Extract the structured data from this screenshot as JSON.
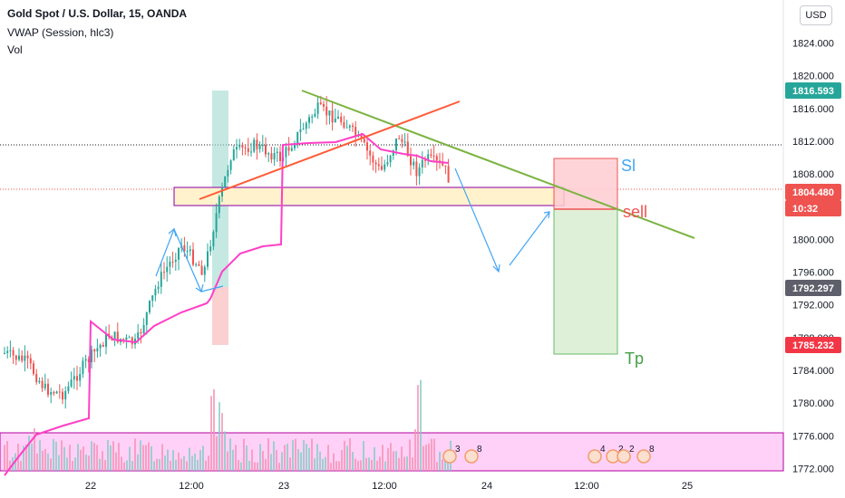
{
  "header": {
    "title": "Gold Spot / U.S. Dollar, 15, OANDA",
    "vwap": "VWAP (Session, hlc3)",
    "vol": "Vol",
    "currency": "USD"
  },
  "chart_data": {
    "type": "candlestick",
    "y_axis": {
      "range": [
        1770.5,
        1825.5
      ],
      "ticks": [
        "1824.000",
        "1820.000",
        "1816.000",
        "1812.000",
        "1808.000",
        "1804.000",
        "1800.000",
        "1796.000",
        "1792.000",
        "1788.000",
        "1784.000",
        "1780.000",
        "1776.000",
        "1772.000"
      ]
    },
    "x_axis": {
      "ticks": [
        "22",
        "12:00",
        "23",
        "12:00",
        "24",
        "12:00",
        "25"
      ]
    },
    "price_tags": [
      {
        "value": "1816.593",
        "color": "#26a69a"
      },
      {
        "value": "1804.480",
        "color": "#ef5350"
      },
      {
        "value": "10:32",
        "color": "#ef5350"
      },
      {
        "value": "1792.297",
        "color": "#5d606b"
      },
      {
        "value": "1785.232",
        "color": "#f23645"
      }
    ],
    "annotations": [
      "Sl",
      "sell",
      "Tp"
    ],
    "event_badges": [
      "3",
      "8",
      "4",
      "2",
      "2",
      "8"
    ],
    "colors": {
      "up": "#26a69a",
      "down": "#ef5350",
      "vwap": "#ff3fc6",
      "trendline": "#7cb342",
      "resistance": "#ff5a36",
      "arrows": "#42a5f5",
      "volume_band": "#ffd1f8"
    }
  }
}
